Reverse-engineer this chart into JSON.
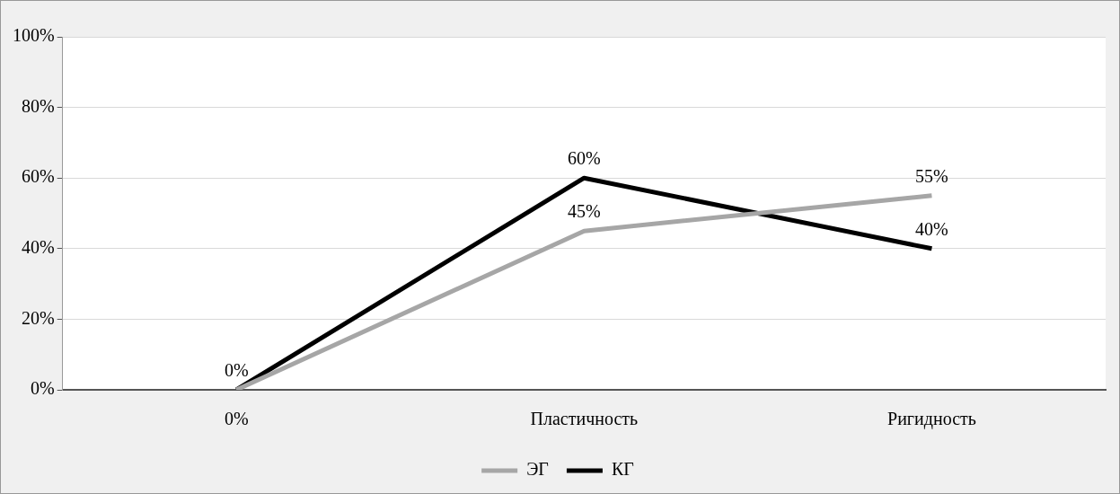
{
  "chart_data": {
    "type": "line",
    "categories": [
      "0%",
      "Пластичность",
      "Ригидность"
    ],
    "series": [
      {
        "name": "ЭГ",
        "color": "#a6a6a6",
        "values": [
          0,
          45,
          55
        ],
        "value_labels": [
          null,
          "45%",
          "55%"
        ]
      },
      {
        "name": "КГ",
        "color": "#000000",
        "values": [
          0,
          60,
          40
        ],
        "value_labels": [
          "0%",
          "60%",
          "40%"
        ]
      }
    ],
    "ylim": [
      0,
      100
    ],
    "yticks": [
      {
        "value": 0,
        "label": "0%"
      },
      {
        "value": 20,
        "label": "20%"
      },
      {
        "value": 40,
        "label": "40%"
      },
      {
        "value": 60,
        "label": "60%"
      },
      {
        "value": 80,
        "label": "80%"
      },
      {
        "value": 100,
        "label": "100%"
      }
    ],
    "grid": "y",
    "legend": "bottom",
    "marker": "none",
    "line_style": "solid"
  }
}
